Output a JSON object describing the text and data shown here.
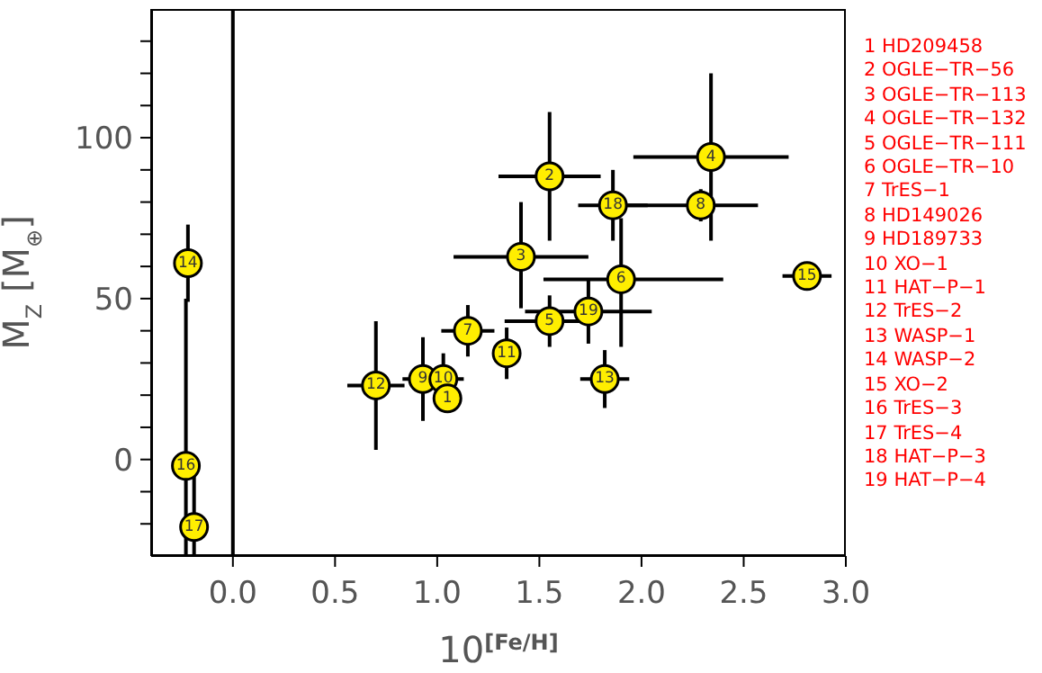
{
  "chart_data": {
    "type": "scatter",
    "xlabel": "10$^{[Fe/H]}$",
    "ylabel": "M$_{Z}$ [M$_{⊕}$]",
    "xlim": [
      -0.4,
      3.0
    ],
    "xticks": [
      {
        "value": 0,
        "label": "0.0"
      },
      {
        "value": 0.5,
        "label": "0.5"
      },
      {
        "value": 1,
        "label": "1.0"
      },
      {
        "value": 1.5,
        "label": "1.5"
      },
      {
        "value": 2,
        "label": "2.0"
      },
      {
        "value": 2.5,
        "label": "2.5"
      },
      {
        "value": 3,
        "label": "3.0"
      }
    ],
    "ylim": [
      -30,
      140
    ],
    "yticks": [
      {
        "value": -20,
        "label": null
      },
      {
        "value": -10,
        "label": null
      },
      0,
      {
        "value": 10,
        "label": null
      },
      {
        "value": 20,
        "label": null
      },
      {
        "value": 30,
        "label": null
      },
      {
        "value": 40,
        "label": null
      },
      50,
      {
        "value": 60,
        "label": null
      },
      {
        "value": 70,
        "label": null
      },
      {
        "value": 80,
        "label": null
      },
      {
        "value": 90,
        "label": null
      },
      100,
      {
        "value": 110,
        "label": null
      },
      {
        "value": 120,
        "label": null
      },
      {
        "value": 130,
        "label": null
      }
    ],
    "grid": false,
    "legend": false,
    "marker": "circle",
    "ref_lines": [
      {
        "axis": "x",
        "value": 0,
        "color": "#000000"
      }
    ],
    "series": [
      {
        "name": "1",
        "color": "#ffee00",
        "x": [
          1.05
        ],
        "values": [
          19
        ]
      },
      {
        "name": "2",
        "color": "#ffee00",
        "x": [
          1.55
        ],
        "values": [
          88
        ],
        "errors": [
          [
            68,
            108
          ]
        ],
        "xerrors": [
          0.25
        ]
      },
      {
        "name": "3",
        "color": "#ffee00",
        "x": [
          1.41
        ],
        "values": [
          63
        ],
        "errors": [
          [
            47,
            80
          ]
        ],
        "xerrors": [
          0.33
        ]
      },
      {
        "name": "4",
        "color": "#ffee00",
        "x": [
          2.34
        ],
        "values": [
          94
        ],
        "errors": [
          [
            68,
            120
          ]
        ],
        "xerrors": [
          0.38
        ]
      },
      {
        "name": "5",
        "color": "#ffee00",
        "x": [
          1.55
        ],
        "values": [
          43
        ],
        "errors": [
          8
        ],
        "xerrors": [
          0.22
        ]
      },
      {
        "name": "6",
        "color": "#ffee00",
        "x": [
          1.9
        ],
        "values": [
          56
        ],
        "errors": [
          [
            35,
            75
          ]
        ],
        "xerrors": [
          [
            1.52,
            2.4
          ]
        ]
      },
      {
        "name": "7",
        "color": "#ffee00",
        "x": [
          1.15
        ],
        "values": [
          40
        ],
        "errors": [
          8
        ],
        "xerrors": [
          0.13
        ]
      },
      {
        "name": "8",
        "color": "#ffee00",
        "x": [
          2.29
        ],
        "values": [
          79
        ],
        "errors": [
          5
        ],
        "xerrors": [
          [
            1.9,
            2.57
          ]
        ]
      },
      {
        "name": "9",
        "color": "#ffee00",
        "x": [
          0.93
        ],
        "values": [
          25
        ],
        "errors": [
          13
        ],
        "xerrors": [
          0.1
        ]
      },
      {
        "name": "10",
        "color": "#ffee00",
        "x": [
          1.03
        ],
        "values": [
          25
        ],
        "errors": [
          8
        ],
        "xerrors": [
          0.1
        ]
      },
      {
        "name": "11",
        "color": "#ffee00",
        "x": [
          1.34
        ],
        "values": [
          33
        ],
        "errors": [
          8
        ]
      },
      {
        "name": "12",
        "color": "#ffee00",
        "x": [
          0.7
        ],
        "values": [
          23
        ],
        "errors": [
          20
        ],
        "xerrors": [
          0.14
        ]
      },
      {
        "name": "13",
        "color": "#ffee00",
        "x": [
          1.82
        ],
        "values": [
          25
        ],
        "errors": [
          9
        ],
        "xerrors": [
          0.12
        ]
      },
      {
        "name": "14",
        "color": "#ffee00",
        "x": [
          -0.22
        ],
        "values": [
          61
        ],
        "errors": [
          12
        ]
      },
      {
        "name": "15",
        "color": "#ffee00",
        "x": [
          2.81
        ],
        "values": [
          57
        ],
        "errors": [
          3
        ],
        "xerrors": [
          0.12
        ]
      },
      {
        "name": "16",
        "color": "#ffee00",
        "x": [
          -0.23
        ],
        "values": [
          -2
        ],
        "errors": [
          [
            -30,
            50
          ]
        ]
      },
      {
        "name": "17",
        "color": "#ffee00",
        "x": [
          -0.19
        ],
        "values": [
          -21
        ],
        "errors": [
          [
            -30,
            0
          ]
        ]
      },
      {
        "name": "18",
        "color": "#ffee00",
        "x": [
          1.86
        ],
        "values": [
          79
        ],
        "errors": [
          11
        ],
        "xerrors": [
          0.17
        ]
      },
      {
        "name": "19",
        "color": "#ffee00",
        "x": [
          1.74
        ],
        "values": [
          46
        ],
        "errors": [
          10
        ],
        "xerrors": [
          0.31
        ]
      }
    ],
    "annotations": [
      "1 HD209458",
      "2 OGLE−TR−56",
      "3 OGLE−TR−113",
      "4 OGLE−TR−132",
      "5 OGLE−TR−111",
      "6 OGLE−TR−10",
      "7 TrES−1",
      "8 HD149026",
      "9 HD189733",
      "10 XO−1",
      "11 HAT−P−1",
      "12 TrES−2",
      "13 WASP−1",
      "14 WASP−2",
      "15 XO−2",
      "16 TrES−3",
      "17 TrES−4",
      "18 HAT−P−3",
      "19 HAT−P−4"
    ]
  }
}
